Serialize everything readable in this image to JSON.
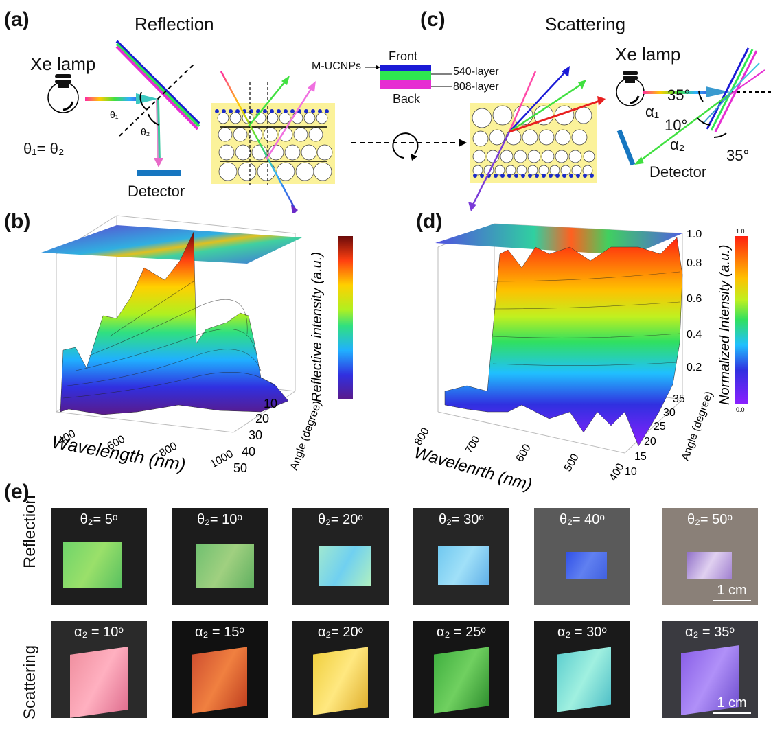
{
  "panels": {
    "a": {
      "label": "(a)",
      "title": "Reflection",
      "lamp": "Xe lamp",
      "theta1": "θ₁",
      "theta2": "θ₂",
      "relation": "θ₁= θ₂",
      "detector": "Detector"
    },
    "c": {
      "label": "(c)",
      "title": "Scattering",
      "lamp": "Xe lamp",
      "alpha1": "α₁",
      "alpha2": "α₂",
      "ang35a": "35°",
      "ang10": "10°",
      "ang35b": "35°",
      "detector": "Detector",
      "layers": {
        "mucnps": "M-UCNPs",
        "front": "Front",
        "l540": "540-layer",
        "l808": "808-layer",
        "back": "Back"
      }
    },
    "b": {
      "label": "(b)",
      "zlabel": "Reflective intensity (a.u.)",
      "xlabel": "Wavelength (nm)",
      "ylabel": "Angle (degree)",
      "xticks": [
        "400",
        "600",
        "800",
        "1000"
      ],
      "yticks": [
        "10",
        "20",
        "30",
        "40",
        "50"
      ]
    },
    "d": {
      "label": "(d)",
      "zlabel": "Normalized Intensity (a.u.)",
      "xlabel": "Wavelenrth (nm)",
      "ylabel": "Angle (degree)",
      "xticks": [
        "800",
        "700",
        "600",
        "500",
        "400"
      ],
      "yticks": [
        "10",
        "15",
        "20",
        "25",
        "30",
        "35"
      ],
      "zticks": [
        "0.2",
        "0.4",
        "0.6",
        "0.8",
        "1.0"
      ],
      "cbar_max": "1.0",
      "cbar_min": "0.0"
    },
    "e": {
      "label": "(e)",
      "row1": "Reflection",
      "row2": "Scattering",
      "scale": "1 cm",
      "reflection": [
        "θ₂= 5ᵒ",
        "θ₂= 10ᵒ",
        "θ₂= 20ᵒ",
        "θ₂= 30ᵒ",
        "θ₂= 40ᵒ",
        "θ₂= 50ᵒ"
      ],
      "scattering": [
        "α₂ = 10ᵒ",
        "α₂ = 15ᵒ",
        "α₂= 20ᵒ",
        "α₂ = 25ᵒ",
        "α₂ = 30ᵒ",
        "α₂ = 35ᵒ"
      ]
    }
  },
  "colors": {
    "magenta": "#e62ed2",
    "green": "#2ee650",
    "blue": "#1a1ad6",
    "detector": "#1676c0",
    "film": "#fbf29a"
  }
}
